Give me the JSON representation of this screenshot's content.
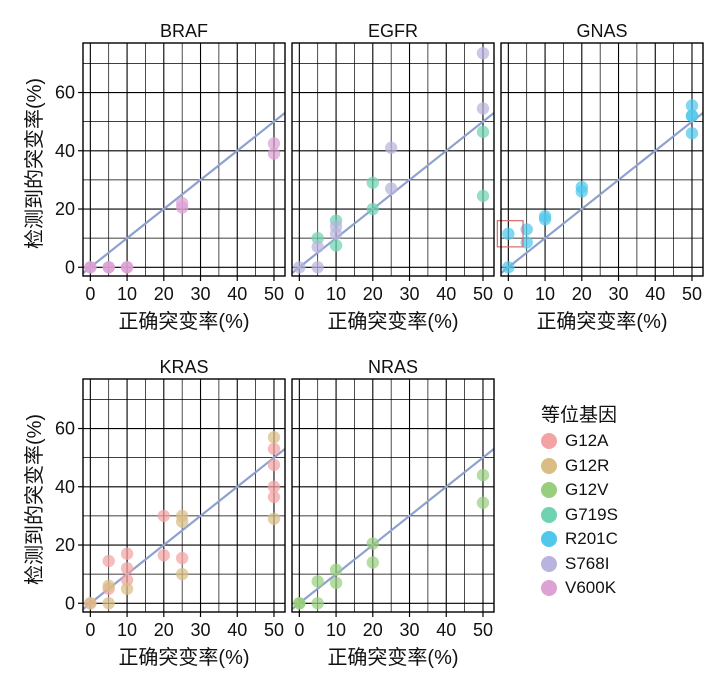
{
  "chart_data": {
    "type": "scatter",
    "xlabel": "正确突变率(%)",
    "ylabel": "检测到的突变率(%)",
    "xlim": [
      -2,
      53
    ],
    "ylim": [
      -3,
      77
    ],
    "xticks": [
      0,
      10,
      20,
      30,
      40,
      50
    ],
    "yticks": [
      0,
      20,
      40,
      60
    ],
    "reference_line": {
      "slope": 1,
      "intercept": 0,
      "color": "#8EA2CF"
    },
    "legend": {
      "title": "等位基因",
      "entries": [
        {
          "name": "G12A",
          "color": "#F4A3A3"
        },
        {
          "name": "G12R",
          "color": "#D9BE84"
        },
        {
          "name": "G12V",
          "color": "#98CF7E"
        },
        {
          "name": "G719S",
          "color": "#6FD3B2"
        },
        {
          "name": "R201C",
          "color": "#4FC8EC"
        },
        {
          "name": "S768I",
          "color": "#B8B4DE"
        },
        {
          "name": "V600K",
          "color": "#DDA1D4"
        }
      ]
    },
    "panels": [
      {
        "title": "BRAF",
        "series": [
          {
            "name": "V600K",
            "points": [
              [
                0,
                0
              ],
              [
                0,
                0
              ],
              [
                5,
                0
              ],
              [
                5,
                0
              ],
              [
                10,
                0
              ],
              [
                10,
                0
              ],
              [
                25,
                22
              ],
              [
                25,
                20.5
              ],
              [
                50,
                42.5
              ],
              [
                50,
                39
              ]
            ]
          }
        ]
      },
      {
        "title": "EGFR",
        "series": [
          {
            "name": "G719S",
            "points": [
              [
                5,
                10
              ],
              [
                10,
                16
              ],
              [
                10,
                7.5
              ],
              [
                20,
                29
              ],
              [
                20,
                20
              ],
              [
                50,
                46.5
              ],
              [
                50,
                24.5
              ]
            ]
          },
          {
            "name": "S768I",
            "points": [
              [
                0,
                0
              ],
              [
                5,
                7
              ],
              [
                5,
                0
              ],
              [
                10,
                14
              ],
              [
                10,
                11.5
              ],
              [
                25,
                41
              ],
              [
                25,
                27
              ],
              [
                50,
                73.5
              ],
              [
                50,
                54.5
              ]
            ]
          }
        ]
      },
      {
        "title": "GNAS",
        "series": [
          {
            "name": "R201C",
            "points": [
              [
                0,
                0
              ],
              [
                0,
                11.5
              ],
              [
                5,
                13
              ],
              [
                5,
                8.5
              ],
              [
                10,
                17.5
              ],
              [
                10,
                16.5
              ],
              [
                20,
                27.5
              ],
              [
                20,
                26
              ],
              [
                50,
                55.5
              ],
              [
                50,
                52
              ],
              [
                50,
                52
              ],
              [
                50,
                46
              ]
            ]
          }
        ],
        "highlight_box": {
          "x": [
            -3,
            4
          ],
          "y": [
            7,
            16
          ]
        }
      },
      {
        "title": "KRAS",
        "series": [
          {
            "name": "G12A",
            "points": [
              [
                0,
                0
              ],
              [
                5,
                14.5
              ],
              [
                5,
                5
              ],
              [
                10,
                17
              ],
              [
                10,
                12
              ],
              [
                10,
                8
              ],
              [
                20,
                30
              ],
              [
                20,
                16.5
              ],
              [
                25,
                15.5
              ],
              [
                50,
                53
              ],
              [
                50,
                47.5
              ],
              [
                50,
                40
              ],
              [
                50,
                36.5
              ]
            ]
          },
          {
            "name": "G12R",
            "points": [
              [
                0,
                0
              ],
              [
                5,
                6
              ],
              [
                5,
                0
              ],
              [
                10,
                5
              ],
              [
                25,
                30
              ],
              [
                25,
                28
              ],
              [
                25,
                10
              ],
              [
                50,
                57
              ],
              [
                50,
                29
              ]
            ]
          }
        ]
      },
      {
        "title": "NRAS",
        "series": [
          {
            "name": "G12V",
            "points": [
              [
                0,
                0
              ],
              [
                0,
                0
              ],
              [
                5,
                7.5
              ],
              [
                5,
                0
              ],
              [
                10,
                11.5
              ],
              [
                10,
                7
              ],
              [
                20,
                20.5
              ],
              [
                20,
                14
              ],
              [
                50,
                44
              ],
              [
                50,
                34.5
              ]
            ]
          }
        ]
      }
    ]
  }
}
